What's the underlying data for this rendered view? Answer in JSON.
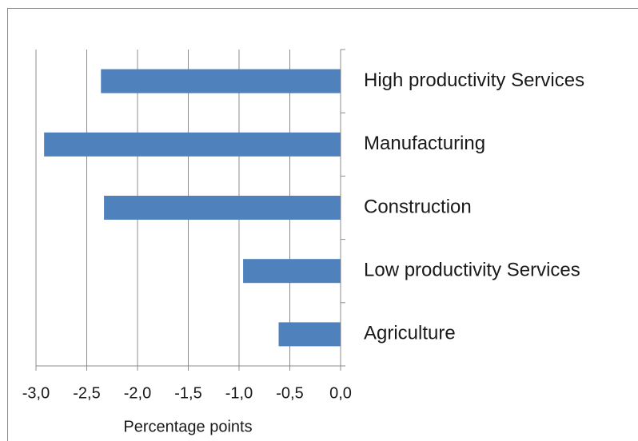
{
  "chart_data": {
    "type": "bar",
    "orientation": "horizontal",
    "categories": [
      "High productivity Services",
      "Manufacturing",
      "Construction",
      "Low productivity Services",
      "Agriculture"
    ],
    "values": [
      -2.36,
      -2.92,
      -2.33,
      -0.96,
      -0.61
    ],
    "color": "#4f81bd",
    "xlabel": "Percentage points",
    "xlim": [
      -3.0,
      0.0
    ],
    "xticks": [
      {
        "value": -3.0,
        "label": "-3,0"
      },
      {
        "value": -2.5,
        "label": "-2,5"
      },
      {
        "value": -2.0,
        "label": "-2,0"
      },
      {
        "value": -1.5,
        "label": "-1,5"
      },
      {
        "value": -1.0,
        "label": "-1,0"
      },
      {
        "value": -0.5,
        "label": "-0,5"
      },
      {
        "value": 0.0,
        "label": "0,0"
      }
    ],
    "grid": true
  }
}
